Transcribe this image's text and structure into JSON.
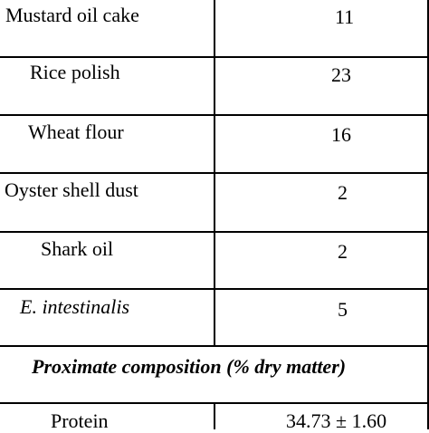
{
  "rows": [
    {
      "ingredient": "Mustard oil cake",
      "value": "11"
    },
    {
      "ingredient": "Rice polish",
      "value": "23"
    },
    {
      "ingredient": "Wheat flour",
      "value": "16"
    },
    {
      "ingredient": "Oyster shell dust",
      "value": "2"
    },
    {
      "ingredient": "Shark oil",
      "value": "2"
    },
    {
      "ingredient": "E. intestinalis",
      "value": "5"
    }
  ],
  "section_header": "Proximate composition (% dry matter)",
  "protein": {
    "label": "Protein",
    "value": "34.73 ± 1.60"
  }
}
